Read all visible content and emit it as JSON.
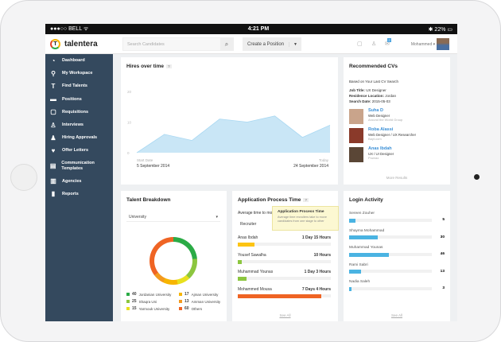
{
  "status": {
    "carrier": "●●●○○ BELL ᯤ",
    "time": "4:21 PM",
    "battery": "✱ 22% ▭"
  },
  "header": {
    "brand": "talentera",
    "logo_letter": "T",
    "search_placeholder": "Search Candidates",
    "create_label": "Create a Position",
    "user": "Mohammed",
    "notif_count": "2"
  },
  "sidebar": [
    {
      "label": "Dashboard",
      "icon": "◔",
      "name": "dashboard"
    },
    {
      "label": "My Workspace",
      "icon": "⚲",
      "name": "my-workspace"
    },
    {
      "label": "Find Talents",
      "icon": "T",
      "name": "find-talents"
    },
    {
      "label": "Positions",
      "icon": "▬",
      "name": "positions"
    },
    {
      "label": "Requisitions",
      "icon": "▢",
      "name": "requisitions"
    },
    {
      "label": "Interviews",
      "icon": "♙",
      "name": "interviews"
    },
    {
      "label": "Hiring Approvals",
      "icon": "♟",
      "name": "hiring-approvals"
    },
    {
      "label": "Offer Letters",
      "icon": "♥",
      "name": "offer-letters"
    },
    {
      "label": "Communication Templates",
      "icon": "▤",
      "name": "communication-templates"
    },
    {
      "label": "Agencies",
      "icon": "▥",
      "name": "agencies"
    },
    {
      "label": "Reports",
      "icon": "▮",
      "name": "reports"
    }
  ],
  "hires": {
    "title": "Hires over time",
    "help": "?",
    "start_label": "Start Date",
    "start_date": "5 September 2014",
    "end_label": "Today",
    "end_date": "24 September 2014"
  },
  "chart_data": {
    "type": "area",
    "title": "Hires over time",
    "y_ticks": [
      "20",
      "10",
      "0"
    ],
    "ylim": [
      0,
      20
    ],
    "values": [
      0,
      6,
      4,
      11,
      10,
      12,
      5,
      9
    ],
    "color": "#c9e6f6"
  },
  "recommended": {
    "title": "Recommended CVs",
    "intro": "Based on Your Last CV Search",
    "job_title_label": "Job Title:",
    "job_title": "UX Designer",
    "residence_label": "Residence Location:",
    "residence": "Jordan",
    "date_label": "Search Date:",
    "date": "2015-05-03",
    "people": [
      {
        "name": "Suha D",
        "role": "Web Designer",
        "company": "Around the World Group"
      },
      {
        "name": "Roba Alassi",
        "role": "Web Designer / UX Researcher",
        "company": "Bayt.com"
      },
      {
        "name": "Anas Ibdah",
        "role": "UX / UI Designer",
        "company": "Powrax"
      }
    ],
    "more": "More Results"
  },
  "talent": {
    "title": "Talent Breakdown",
    "select": "University",
    "segments": [
      {
        "count": "40",
        "label": "Jordanian University",
        "value": 40,
        "color": "#2bab46"
      },
      {
        "count": "25",
        "label": "Shaqra Uni",
        "value": 25,
        "color": "#8cc63f"
      },
      {
        "count": "15",
        "label": "Yarmouk University",
        "value": 15,
        "color": "#e8e01e"
      },
      {
        "count": "17",
        "label": "Ajman University",
        "value": 17,
        "color": "#f7b500"
      },
      {
        "count": "13",
        "label": "Amman University",
        "value": 13,
        "color": "#f39a1e"
      },
      {
        "count": "60",
        "label": "Others",
        "value": 60,
        "color": "#ef6424"
      }
    ]
  },
  "app": {
    "title": "Application Process Time",
    "help": "?",
    "avg": "Average time to move",
    "recruiter": "Recruiter",
    "tooltip_title": "Application Process Time",
    "tooltip_text": "Average time recruiters take to move candidates from one stage to other",
    "rows": [
      {
        "name": "Anas Ibdah",
        "time": "1 Day 15 Hours",
        "pct": 18,
        "color": "#fdc413"
      },
      {
        "name": "Yousef Sawalha",
        "time": "10 Hours",
        "pct": 4,
        "color": "#8cc63f"
      },
      {
        "name": "Muhammad Younas",
        "time": "1 Day 3 Hours",
        "pct": 9,
        "color": "#8cc63f"
      },
      {
        "name": "Mohammed Mousa",
        "time": "7 Days 4 Hours",
        "pct": 90,
        "color": "#ef6424"
      }
    ],
    "see_all": "See All"
  },
  "login": {
    "title": "Login Activity",
    "rows": [
      {
        "name": "Sereen Zouher",
        "count": "5",
        "pct": 8
      },
      {
        "name": "Shayma Mohammad",
        "count": "30",
        "pct": 35
      },
      {
        "name": "Muhammad Younas",
        "count": "46",
        "pct": 48
      },
      {
        "name": "Rami Sabri",
        "count": "13",
        "pct": 14
      },
      {
        "name": "Nadia Saleh",
        "count": "3",
        "pct": 3
      }
    ],
    "see_all": "See All",
    "color": "#4ab3e2"
  }
}
